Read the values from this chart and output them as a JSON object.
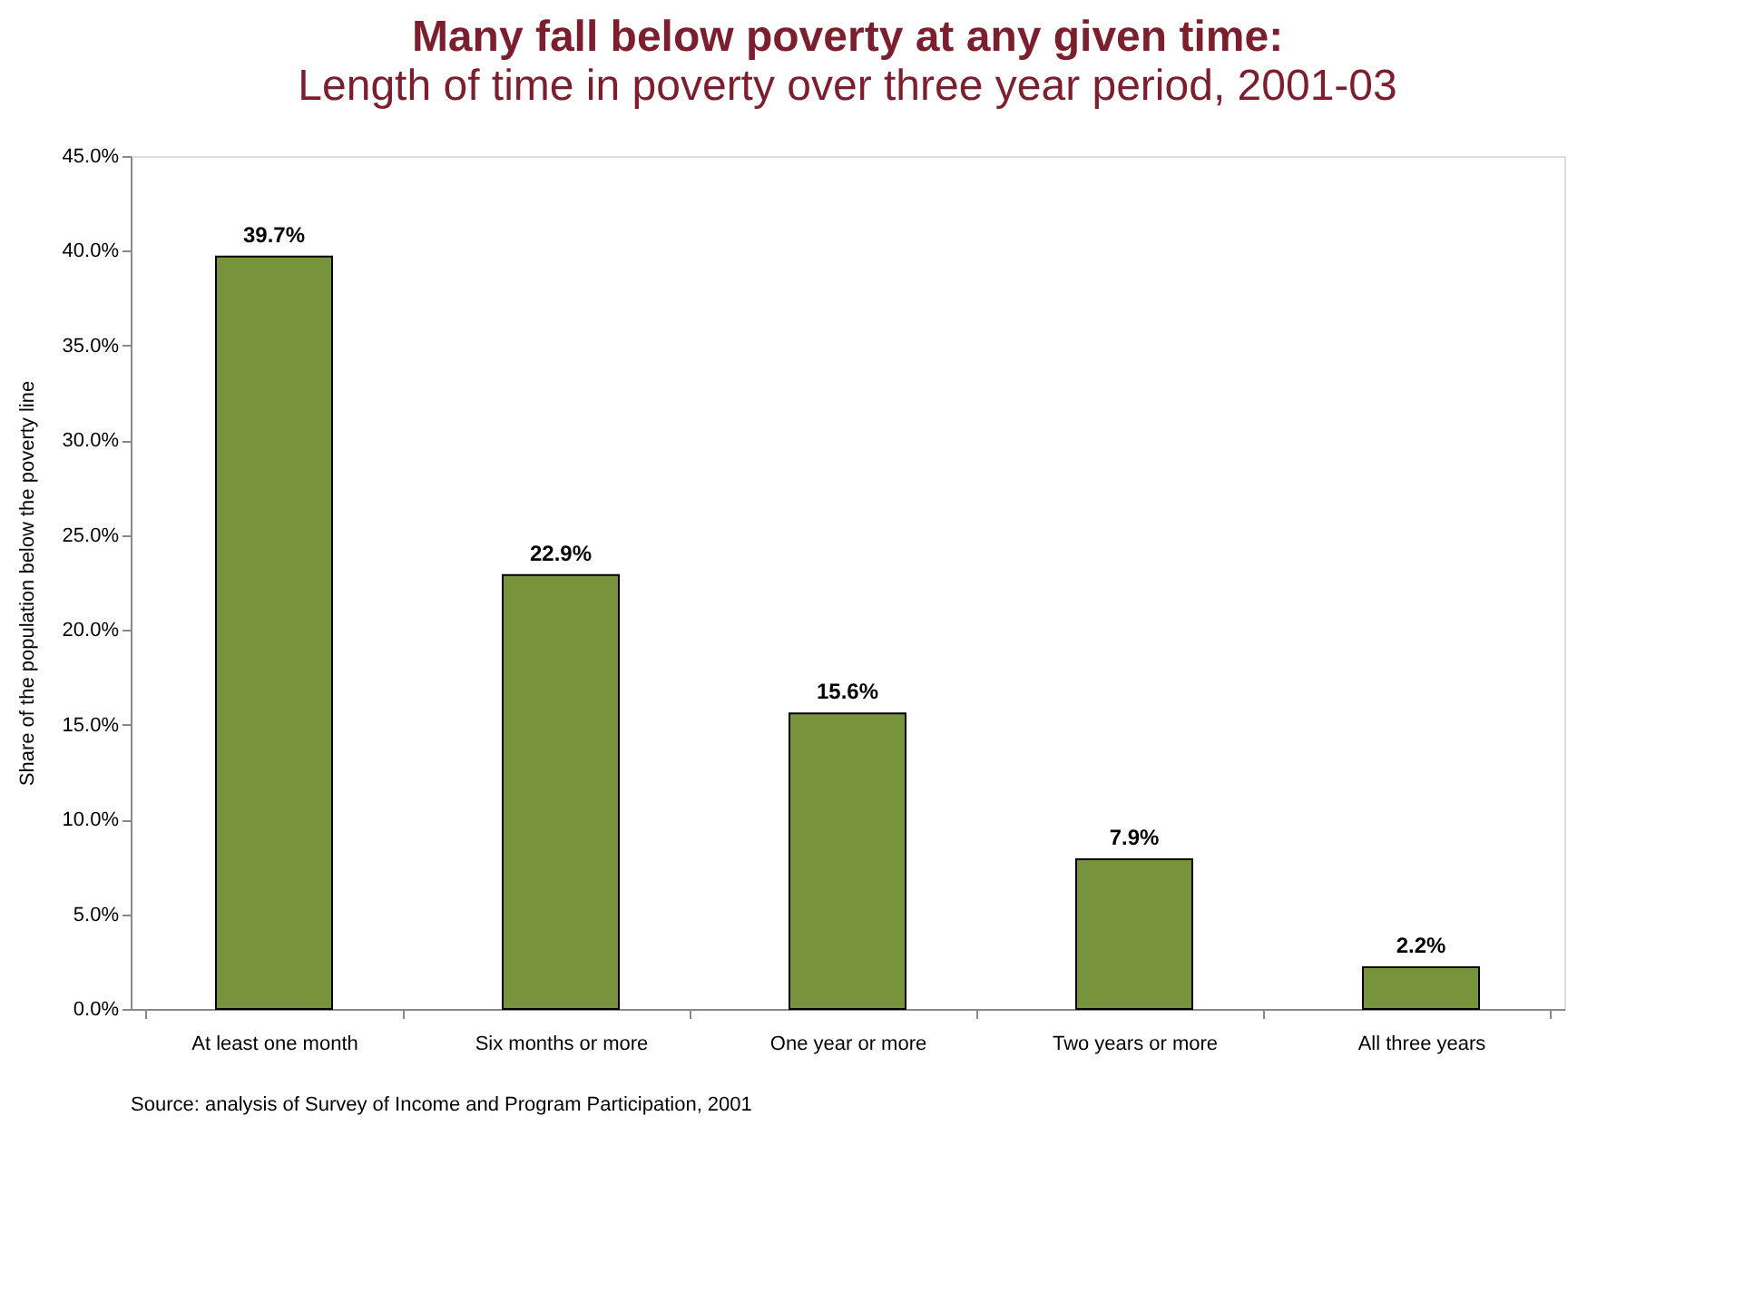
{
  "chart_data": {
    "type": "bar",
    "title": "Many fall below poverty at any given time:",
    "subtitle": "Length of time in poverty over three year period, 2001-03",
    "ylabel": "Share of the population below the poverty line",
    "categories": [
      "At least one month",
      "Six months or more",
      "One year or more",
      "Two years or more",
      "All three years"
    ],
    "values": [
      39.7,
      22.9,
      15.6,
      7.9,
      2.2
    ],
    "color": "#77933c",
    "value_labels": [
      "39.7%",
      "22.9%",
      "15.6%",
      "7.9%",
      "2.2%"
    ],
    "ylim": [
      0,
      45
    ],
    "yticks": [
      {
        "value": 0,
        "label": "0.0%"
      },
      {
        "value": 5,
        "label": "5.0%"
      },
      {
        "value": 10,
        "label": "10.0%"
      },
      {
        "value": 15,
        "label": "15.0%"
      },
      {
        "value": 20,
        "label": "20.0%"
      },
      {
        "value": 25,
        "label": "25.0%"
      },
      {
        "value": 30,
        "label": "30.0%"
      },
      {
        "value": 35,
        "label": "35.0%"
      },
      {
        "value": 40,
        "label": "40.0%"
      },
      {
        "value": 45,
        "label": "45.0%"
      }
    ],
    "grid": false,
    "annotations": [
      "Source: analysis of Survey of Income and Program Participation, 2001"
    ]
  }
}
